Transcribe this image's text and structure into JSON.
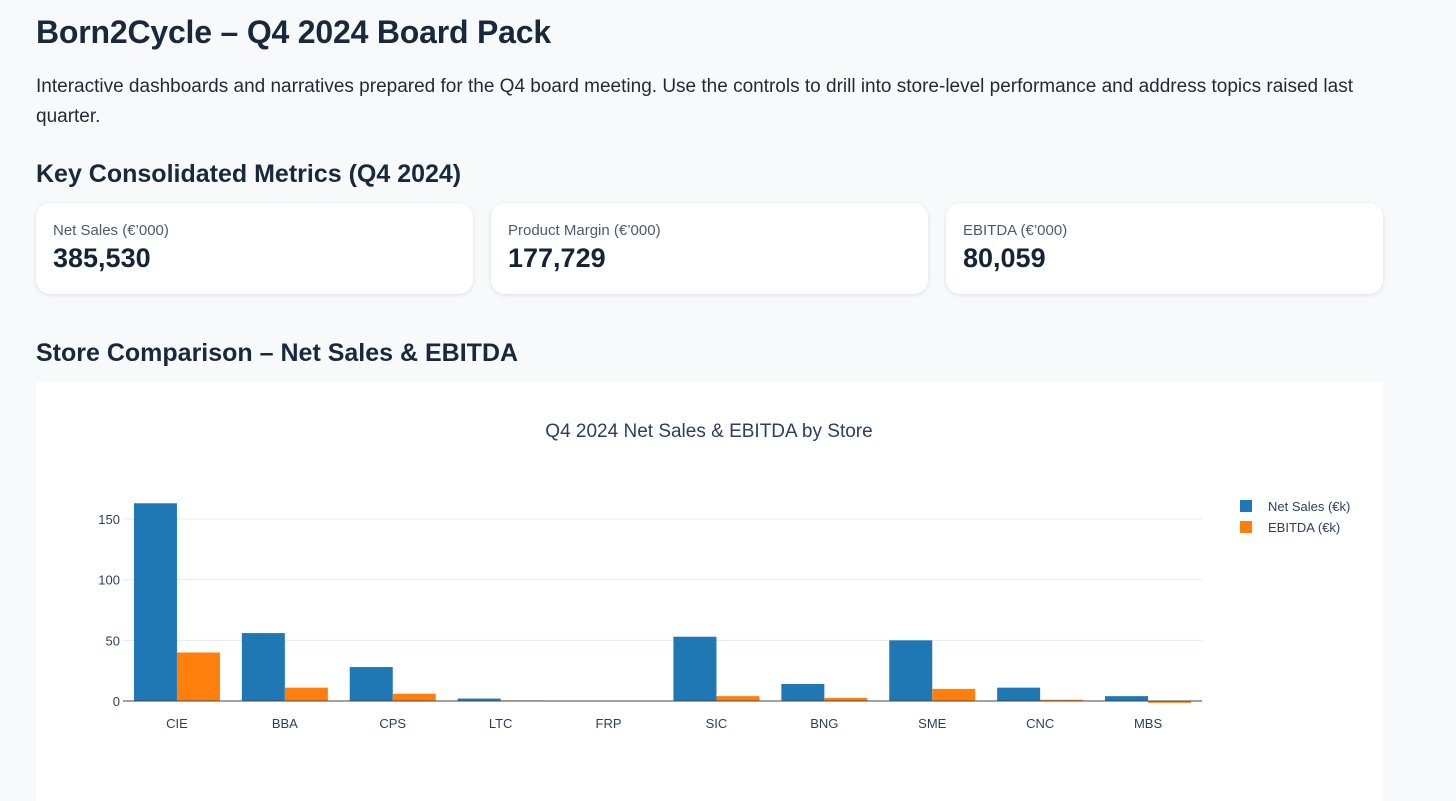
{
  "page": {
    "title": "Born2Cycle – Q4 2024 Board Pack",
    "intro": "Interactive dashboards and narratives prepared for the Q4 board meeting. Use the controls to drill into store-level performance and address topics raised last quarter."
  },
  "metrics": {
    "heading": "Key Consolidated Metrics (Q4 2024)",
    "cards": [
      {
        "label": "Net Sales (€’000)",
        "value": "385,530"
      },
      {
        "label": "Product Margin (€’000)",
        "value": "177,729"
      },
      {
        "label": "EBITDA (€’000)",
        "value": "80,059"
      }
    ]
  },
  "comparison": {
    "heading": "Store Comparison – Net Sales & EBITDA"
  },
  "colors": {
    "net_sales": "#1f77b4",
    "ebitda": "#ff7f0e",
    "grid": "#e6e9ee",
    "axis": "#2a3f5f"
  },
  "chart_data": {
    "type": "bar",
    "title": "Q4 2024 Net Sales & EBITDA by Store",
    "xlabel": "",
    "ylabel": "",
    "categories": [
      "CIE",
      "BBA",
      "CPS",
      "LTC",
      "FRP",
      "SIC",
      "BNG",
      "SME",
      "CNC",
      "MBS"
    ],
    "series": [
      {
        "name": "Net Sales (€k)",
        "values": [
          163,
          56,
          28,
          2,
          0,
          53,
          14,
          50,
          11,
          4
        ]
      },
      {
        "name": "EBITDA (€k)",
        "values": [
          40,
          11,
          6,
          0.5,
          0,
          4,
          2.5,
          10,
          1,
          -1.5
        ]
      }
    ],
    "yticks": [
      0,
      50,
      100,
      150
    ],
    "ylim": [
      -3,
      163
    ],
    "grid": true,
    "legend": "top-right"
  }
}
